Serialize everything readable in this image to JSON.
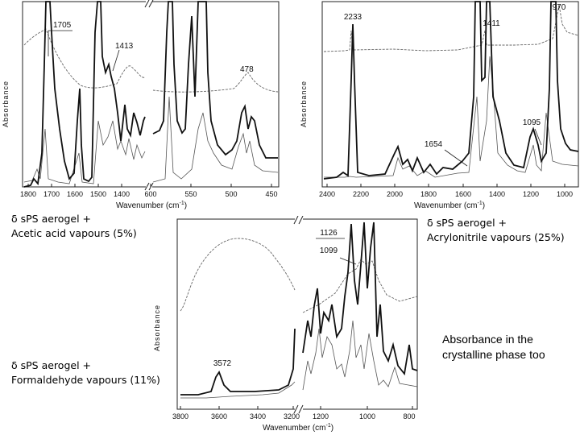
{
  "chart_data": [
    {
      "type": "line",
      "panel": "top-left",
      "title": "",
      "xlabel": "Wavenumber (cm-1)",
      "ylabel": "Absorbance",
      "xticks": [
        "1800",
        "1700",
        "1600",
        "1500",
        "1400",
        "600",
        "550",
        "500",
        "450"
      ],
      "axis_break": "between 1400 and 600",
      "annotations": [
        "1705",
        "1413",
        "478"
      ],
      "series": [
        {
          "name": "sPS + vapour (bold)",
          "style": "bold"
        },
        {
          "name": "sPS reference (thin)",
          "style": "thin"
        },
        {
          "name": "difference (dashed)",
          "style": "dashed"
        }
      ]
    },
    {
      "type": "line",
      "panel": "top-right",
      "title": "",
      "xlabel": "Wavenumber (cm-1)",
      "ylabel": "Absorbance",
      "xticks": [
        "2400",
        "2200",
        "2000",
        "1800",
        "1600",
        "1400",
        "1200",
        "1000"
      ],
      "annotations": [
        "2233",
        "1411",
        "970",
        "1654",
        "1095"
      ],
      "series": [
        {
          "name": "sPS + vapour (bold)",
          "style": "bold"
        },
        {
          "name": "sPS reference (thin)",
          "style": "thin"
        },
        {
          "name": "difference (dashed)",
          "style": "dashed"
        }
      ]
    },
    {
      "type": "line",
      "panel": "bottom",
      "title": "",
      "xlabel": "Wavenumber (cm-1)",
      "ylabel": "Absorbance",
      "xticks": [
        "3800",
        "3600",
        "3400",
        "3200",
        "1200",
        "1000",
        "800"
      ],
      "axis_break": "between 3200 and 1200",
      "annotations": [
        "1126",
        "1099",
        "3572"
      ],
      "series": [
        {
          "name": "sPS + vapour (bold)",
          "style": "bold"
        },
        {
          "name": "sPS reference (thin)",
          "style": "thin"
        },
        {
          "name": "difference (dashed)",
          "style": "dashed"
        }
      ]
    }
  ],
  "captions": {
    "acetic": {
      "line1": "δ sPS aerogel +",
      "line2": "Acetic acid vapours (5%)"
    },
    "acrylo": {
      "line1": "δ sPS aerogel +",
      "line2": "Acrylonitrile vapours (25%)"
    },
    "formal": {
      "line1": "δ sPS aerogel +",
      "line2": "Formaldehyde vapours (11%)"
    }
  },
  "note": {
    "line1": "Absorbance in the",
    "line2": "crystalline phase too"
  }
}
